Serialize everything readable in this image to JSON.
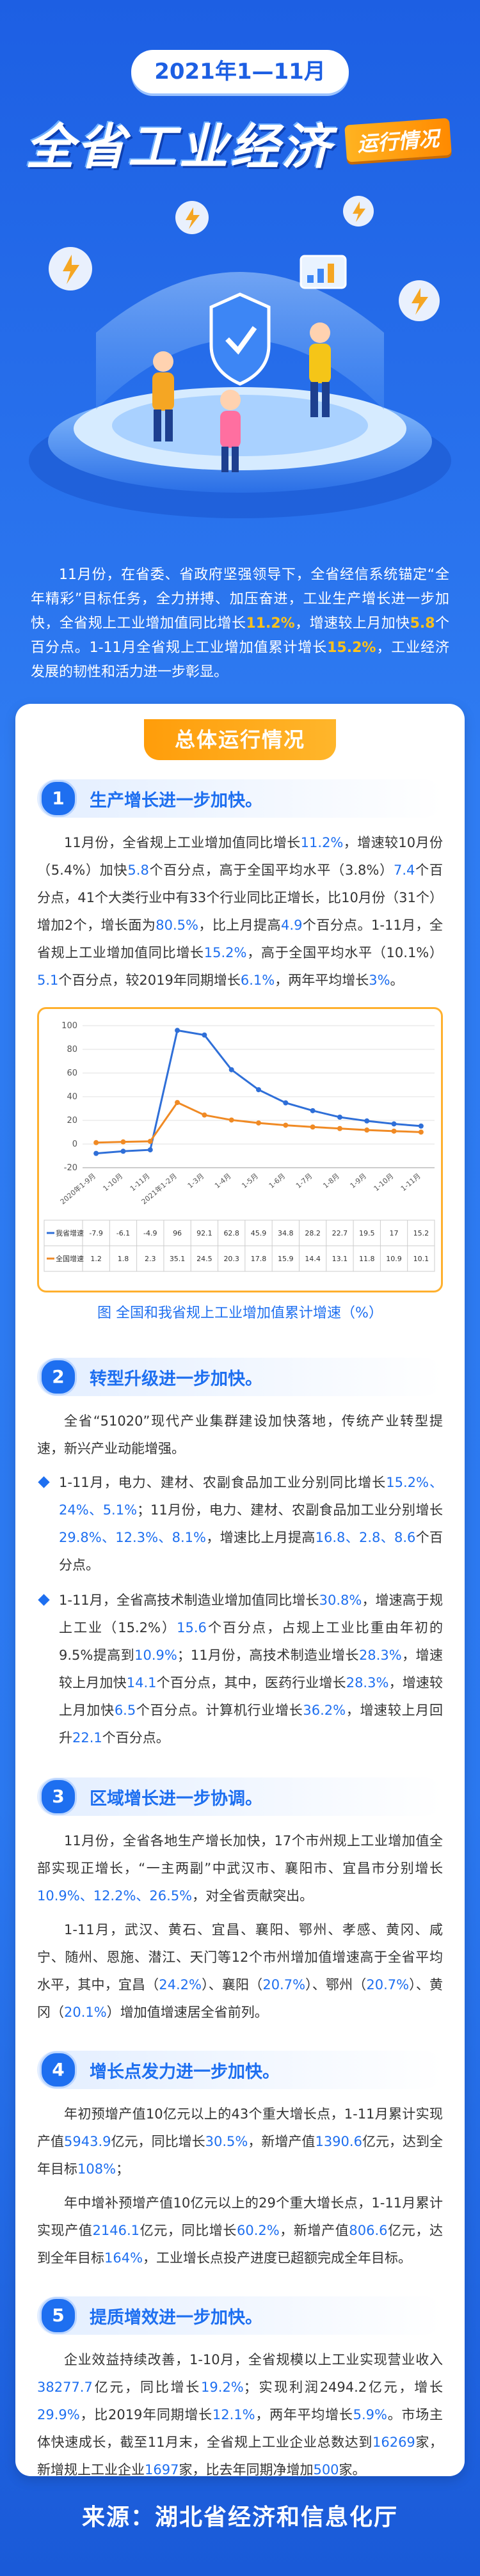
{
  "header": {
    "date_range": "2021年1—11月",
    "title": "全省工业经济",
    "tag": "运行情况"
  },
  "intro": {
    "segments": [
      "11月份，在省委、省政府坚强领导下，全省经信系统锚定“全年精彩”目标任务，全力拼搏、加压奋进，工业生产增长进一步加快，全省规上工业增加值同比增长",
      "11.2%",
      "，增速较上月加快",
      "5.8",
      "个百分点。1-11月全省规上工业增加值累计增长",
      "15.2%",
      "，工业经济发展的韧性和活力进一步彰显。"
    ]
  },
  "banner": "总体运行情况",
  "sections": [
    {
      "number": 1,
      "title": "生产增长进一步加快。",
      "paragraphs": [
        [
          "11月份，全省规上工业增加值同比增长",
          "11.2%",
          "，增速较10月份（5.4%）加快",
          "5.8",
          "个百分点，高于全国平均水平（3.8%）",
          "7.4",
          "个百分点，41个大类行业中有33个行业同比正增长，比10月份（31个）增加2个，增长面为",
          "80.5%",
          "，比上月提高",
          "4.9",
          "个百分点。1-11月，全省规上工业增加值同比增长",
          "15.2%",
          "，高于全国平均水平（10.1%）",
          "5.1",
          "个百分点，较2019年同期增长",
          "6.1%",
          "，两年平均增长",
          "3%",
          "。"
        ]
      ]
    },
    {
      "number": 2,
      "title": "转型升级进一步加快。",
      "paragraphs": [
        [
          "全省“51020”现代产业集群建设加快落地，传统产业转型提速，新兴产业动能增强。"
        ]
      ],
      "bullets": [
        [
          "1-11月，电力、建材、农副食品加工业分别同比增长",
          "15.2%、24%、5.1%",
          "；11月份，电力、建材、农副食品加工业分别增长",
          "29.8%、12.3%、8.1%",
          "，增速比上月提高",
          "16.8、2.8、8.6",
          "个百分点。"
        ],
        [
          "1-11月，全省高技术制造业增加值同比增长",
          "30.8%",
          "，增速高于规上工业（15.2%）",
          "15.6",
          "个百分点，占规上工业比重由年初的9.5%提高到",
          "10.9%",
          "；11月份，高技术制造业增长",
          "28.3%",
          "，增速较上月加快",
          "14.1",
          "个百分点，其中，医药行业增长",
          "28.3%",
          "，增速较上月加快",
          "6.5",
          "个百分点。计算机行业增长",
          "36.2%",
          "，增速较上月回升",
          "22.1",
          "个百分点。"
        ]
      ]
    },
    {
      "number": 3,
      "title": "区域增长进一步协调。",
      "paragraphs": [
        [
          "11月份，全省各地生产增长加快，17个市州规上工业增加值全部实现正增长，“一主两副”中武汉市、襄阳市、宜昌市分别增长",
          "10.9%、12.2%、26.5%",
          "，对全省贡献突出。"
        ],
        [
          "1-11月，武汉、黄石、宜昌、襄阳、鄂州、孝感、黄冈、咸宁、随州、恩施、潜江、天门等12个市州增加值增速高于全省平均水平，其中，宜昌（",
          "24.2%",
          "）、襄阳（",
          "20.7%",
          "）、鄂州（",
          "20.7%",
          "）、黄冈（",
          "20.1%",
          "）增加值增速居全省前列。"
        ]
      ]
    },
    {
      "number": 4,
      "title": "增长点发力进一步加快。",
      "paragraphs": [
        [
          "年初预增产值10亿元以上的43个重大增长点，1-11月累计实现产值",
          "5943.9",
          "亿元，同比增长",
          "30.5%",
          "，新增产值",
          "1390.6",
          "亿元，达到全年目标",
          "108%",
          "；"
        ],
        [
          "年中增补预增产值10亿元以上的29个重大增长点，1-11月累计实现产值",
          "2146.1",
          "亿元，同比增长",
          "60.2%",
          "，新增产值",
          "806.6",
          "亿元，达到全年目标",
          "164%",
          "，工业增长点投产进度已超额完成全年目标。"
        ]
      ]
    },
    {
      "number": 5,
      "title": "提质增效进一步加快。",
      "paragraphs": [
        [
          "企业效益持续改善，1-10月，全省规模以上工业实现营业收入",
          "38277.7",
          "亿元，同比增长",
          "19.2%",
          "；实现利润2494.2亿元，增长",
          "29.9%",
          "，比2019年同期增长",
          "12.1%",
          "，两年平均增长",
          "5.9%",
          "。市场主体快速成长，截至11月末，全省规上工业企业总数达到",
          "16269",
          "家，新增规上工业企业",
          "1697",
          "家，比去年同期净增加",
          "500",
          "家。"
        ]
      ]
    }
  ],
  "chart_data": {
    "type": "line",
    "caption": "图  全国和我省规上工业增加值累计增速（%）",
    "categories": [
      "2020年1-9月",
      "1-10月",
      "1-11月",
      "2021年1-2月",
      "1-3月",
      "1-4月",
      "1-5月",
      "1-6月",
      "1-7月",
      "1-8月",
      "1-9月",
      "1-10月",
      "1-11月"
    ],
    "series": [
      {
        "name": "我省增速",
        "color": "#2f6fd8",
        "values": [
          -7.9,
          -6.1,
          -4.9,
          96,
          92.1,
          62.8,
          45.9,
          34.8,
          28.2,
          22.7,
          19.5,
          17,
          15.2
        ]
      },
      {
        "name": "全国增速",
        "color": "#f08a24",
        "values": [
          1.2,
          1.8,
          2.3,
          35.1,
          24.5,
          20.3,
          17.8,
          15.9,
          14.4,
          13.1,
          11.8,
          10.9,
          10.1
        ]
      }
    ],
    "ylim": [
      -20,
      100
    ],
    "yticks": [
      -20,
      0,
      20,
      40,
      60,
      80,
      100
    ],
    "grid": true
  },
  "footer": "来源：湖北省经济和信息化厅"
}
